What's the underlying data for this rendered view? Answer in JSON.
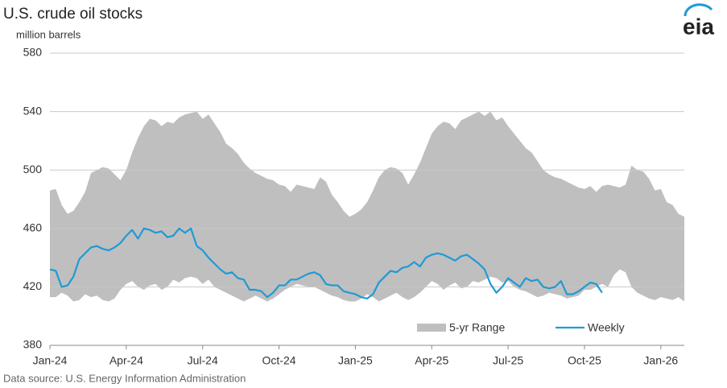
{
  "chart_data": {
    "type": "range-line",
    "title": "U.S. crude oil stocks",
    "subtitle": "million barrels",
    "source": "Data source: U.S. Energy Information Administration",
    "categories": [
      "Jan-24",
      null,
      null,
      null,
      null,
      null,
      null,
      null,
      null,
      null,
      null,
      null,
      null,
      "Apr-24",
      null,
      null,
      null,
      null,
      null,
      null,
      null,
      null,
      null,
      null,
      null,
      null,
      "Jul-24",
      null,
      null,
      null,
      null,
      null,
      null,
      null,
      null,
      null,
      null,
      null,
      null,
      "Oct-24",
      null,
      null,
      null,
      null,
      null,
      null,
      null,
      null,
      null,
      null,
      null,
      null,
      "Jan-25",
      null,
      null,
      null,
      null,
      null,
      null,
      null,
      null,
      null,
      null,
      null,
      null,
      "Apr-25",
      null,
      null,
      null,
      null,
      null,
      null,
      null,
      null,
      null,
      null,
      null,
      null,
      "Jul-25",
      null,
      null,
      null,
      null,
      null,
      null,
      null,
      null,
      null,
      null,
      null,
      null,
      "Oct-25",
      null,
      null,
      null,
      null,
      null,
      null,
      null,
      null,
      null,
      null,
      null,
      null,
      "Jan-26",
      null,
      null,
      null,
      null
    ],
    "series": [
      {
        "name": "5-yr Range",
        "color": "#bfbfbf",
        "upper": [
          486,
          487,
          476,
          470,
          472,
          478,
          485,
          498,
          500,
          502,
          501,
          497,
          493,
          500,
          512,
          522,
          530,
          535,
          534,
          530,
          533,
          532,
          536,
          538,
          539,
          540,
          535,
          538,
          532,
          526,
          518,
          515,
          511,
          505,
          501,
          498,
          496,
          494,
          493,
          490,
          489,
          485,
          490,
          489,
          488,
          487,
          495,
          492,
          483,
          478,
          472,
          468,
          470,
          473,
          478,
          486,
          495,
          500,
          502,
          501,
          498,
          490,
          497,
          505,
          515,
          525,
          530,
          533,
          532,
          528,
          534,
          536,
          538,
          540,
          537,
          540,
          534,
          536,
          530,
          525,
          520,
          515,
          512,
          506,
          500,
          497,
          495,
          494,
          492,
          490,
          488,
          487,
          489,
          485,
          489,
          490,
          489,
          488,
          490,
          503,
          500,
          499,
          494,
          486,
          487,
          478,
          476,
          470,
          468
        ],
        "lower": [
          413,
          413,
          416,
          414,
          410,
          411,
          415,
          413,
          414,
          411,
          410,
          412,
          418,
          422,
          424,
          420,
          418,
          421,
          422,
          418,
          420,
          425,
          423,
          426,
          427,
          426,
          422,
          425,
          420,
          418,
          416,
          414,
          412,
          410,
          412,
          414,
          412,
          410,
          412,
          415,
          418,
          420,
          422,
          421,
          420,
          420,
          418,
          416,
          414,
          413,
          411,
          410,
          410,
          412,
          415,
          413,
          410,
          412,
          414,
          416,
          413,
          411,
          413,
          416,
          420,
          424,
          422,
          418,
          421,
          423,
          419,
          420,
          424,
          423,
          425,
          427,
          426,
          423,
          424,
          420,
          418,
          417,
          415,
          413,
          414,
          416,
          415,
          414,
          412,
          413,
          414,
          418,
          418,
          420,
          422,
          420,
          428,
          432,
          430,
          420,
          416,
          414,
          412,
          411,
          413,
          412,
          411,
          413,
          410
        ]
      },
      {
        "name": "Weekly",
        "color": "#1f9ad6",
        "values": [
          432,
          431,
          420,
          421,
          427,
          439,
          443,
          447,
          448,
          446,
          445,
          447,
          450,
          455,
          459,
          453,
          460,
          459,
          457,
          458,
          454,
          455,
          460,
          457,
          460,
          448,
          445,
          440,
          436,
          432,
          429,
          430,
          426,
          425,
          418,
          418,
          417,
          413,
          416,
          421,
          421,
          425,
          425,
          427,
          429,
          430,
          428,
          422,
          421,
          421,
          417,
          416,
          415,
          413,
          412,
          415,
          423,
          427,
          431,
          430,
          433,
          434,
          437,
          434,
          440,
          442,
          443,
          442,
          440,
          438,
          441,
          442,
          439,
          436,
          432,
          422,
          416,
          420,
          426,
          423,
          420,
          426,
          424,
          425,
          420,
          419,
          420,
          424,
          415,
          415,
          417,
          420,
          423,
          422,
          416,
          null,
          null,
          null,
          null,
          null,
          null,
          null,
          null,
          null,
          null,
          null,
          null,
          null,
          null
        ]
      }
    ],
    "ylim": [
      380,
      580
    ],
    "yticks": [
      380,
      420,
      460,
      500,
      540,
      580
    ],
    "grid": true
  },
  "logo": "eia"
}
